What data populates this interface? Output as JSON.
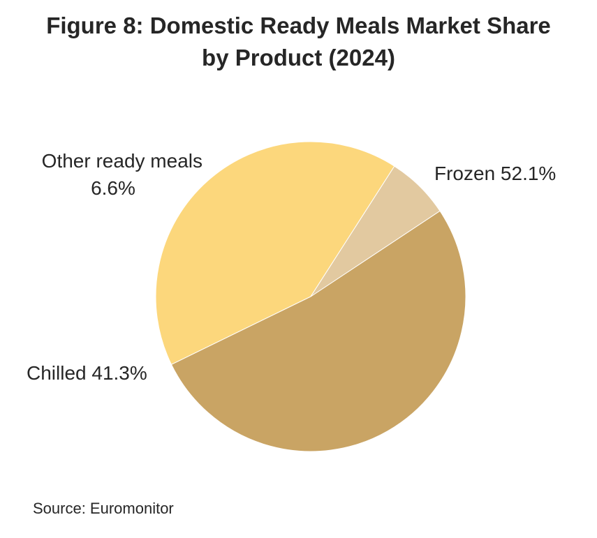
{
  "chart_data": {
    "type": "pie",
    "title": "Figure 8: Domestic Ready Meals Market Share",
    "title_line2": "by Product (2024)",
    "unit": "%",
    "slices": [
      {
        "name": "Frozen",
        "value": 52.1,
        "label": "Frozen 52.1%",
        "color": "#C9A464"
      },
      {
        "name": "Chilled",
        "value": 41.3,
        "label": "Chilled 41.3%",
        "color": "#FCD77C"
      },
      {
        "name": "Other ready meals",
        "value": 6.6,
        "label_line1": "Other ready meals",
        "label_line2": "6.6%",
        "color": "#E2C9A0"
      }
    ],
    "legend": "none"
  },
  "source": "Source: Euromonitor"
}
